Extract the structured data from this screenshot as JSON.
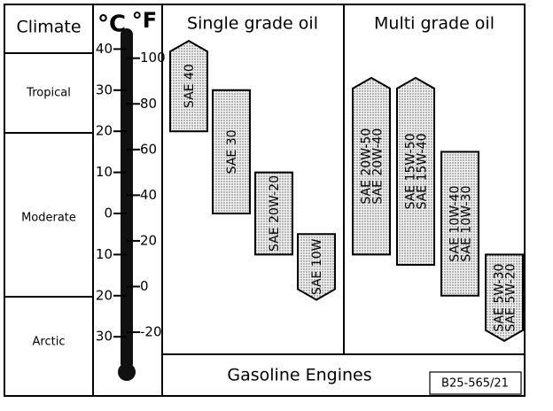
{
  "header": {
    "climate": "Climate",
    "celsius": "°C",
    "fahrenheit": "°F",
    "single_grade": "Single grade oil",
    "multi_grade": "Multi grade oil"
  },
  "climates": [
    "Tropical",
    "Moderate",
    "Arctic"
  ],
  "celsius_ticks": [
    40,
    30,
    20,
    10,
    0,
    {
      "value": -10,
      "label": "10"
    },
    {
      "value": -20,
      "label": "20"
    },
    {
      "value": -30,
      "label": "30"
    }
  ],
  "fahrenheit_ticks": [
    100,
    80,
    60,
    40,
    20,
    0,
    -20
  ],
  "single_grade_oils": [
    {
      "labels": [
        "SAE 40"
      ],
      "max": 42,
      "min": 20,
      "open_end": "top"
    },
    {
      "labels": [
        "SAE 30"
      ],
      "max": 30,
      "min": 0,
      "open_end": "none"
    },
    {
      "labels": [
        "SAE 20W-20"
      ],
      "max": 10,
      "min": -10,
      "open_end": "none"
    },
    {
      "labels": [
        "SAE 10W"
      ],
      "max": -5,
      "min": -21,
      "open_end": "bottom"
    }
  ],
  "multi_grade_oils": [
    {
      "labels": [
        "SAE 20W-50",
        "SAE 20W-40"
      ],
      "max": 33,
      "min": -10,
      "open_end": "top"
    },
    {
      "labels": [
        "SAE 15W-50",
        "SAE 15W-40"
      ],
      "max": 33,
      "min": -12.5,
      "open_end": "top"
    },
    {
      "labels": [
        "SAE 10W-40",
        "SAE 10W-30"
      ],
      "max": 15,
      "min": -20,
      "open_end": "none"
    },
    {
      "labels": [
        "SAE 5W-30",
        "SAE 5W-20"
      ],
      "max": -10,
      "min": -31,
      "open_end": "bottom"
    }
  ],
  "footer": {
    "engine": "Gasoline Engines",
    "reference": "B25-565/21"
  }
}
